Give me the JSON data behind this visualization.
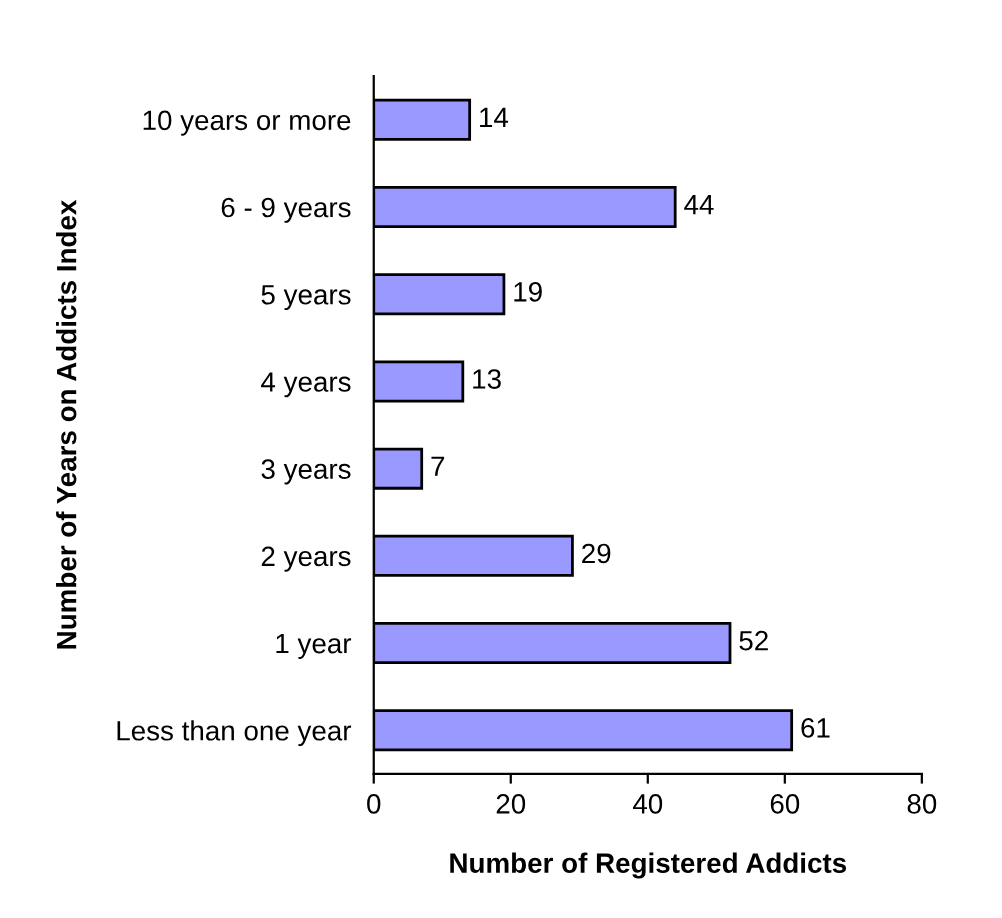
{
  "chart_data": {
    "type": "bar",
    "orientation": "horizontal",
    "xlabel": "Number of Registered Addicts",
    "ylabel": "Number of Years on Addicts Index",
    "categories": [
      "10 years or more",
      "6 - 9 years",
      "5 years",
      "4 years",
      "3 years",
      "2 years",
      "1 year",
      "Less than one year"
    ],
    "values": [
      14,
      44,
      19,
      13,
      7,
      29,
      52,
      61
    ],
    "color": "#9999ff",
    "xlim": [
      0,
      80
    ],
    "xticks": [
      0,
      20,
      40,
      60,
      80
    ],
    "grid": false,
    "legend": false,
    "data_labels": true
  }
}
